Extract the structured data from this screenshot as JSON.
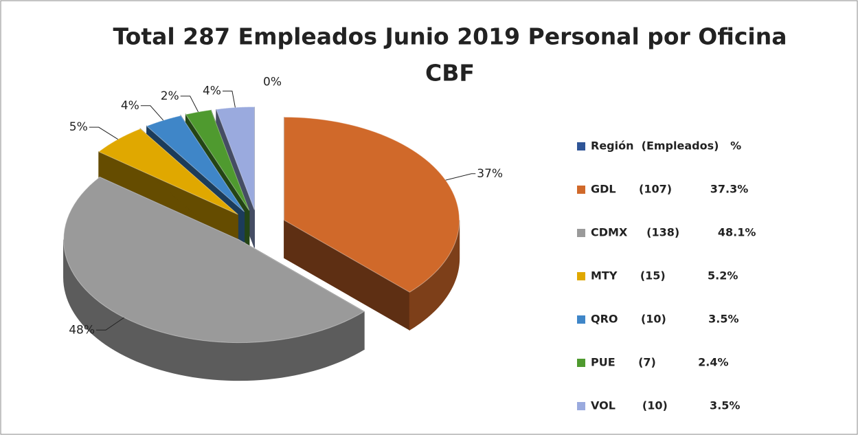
{
  "chart_data": {
    "type": "pie",
    "title": [
      "Total 287 Empleados Junio 2019 Personal por Oficina",
      "CBF"
    ],
    "categories": [
      "Región  (Empleados)   %",
      "GDL      (107)          37.3%",
      "CDMX     (138)          48.1%",
      "MTY      (15)           5.2%",
      "QRO      (10)           3.5%",
      "PUE      (7)           2.4%",
      "VOL       (10)           3.5%"
    ],
    "values": [
      0,
      37.3,
      48.1,
      5.2,
      3.5,
      2.4,
      3.5
    ],
    "value_labels": [
      "0%",
      "37%",
      "48%",
      "5%",
      "4%",
      "2%",
      "4%"
    ],
    "colors": [
      "#2f5597",
      "#d0692a",
      "#9a9a9a",
      "#e0a800",
      "#3f86c8",
      "#4f9a2f",
      "#9aaade"
    ],
    "legend": "right"
  }
}
